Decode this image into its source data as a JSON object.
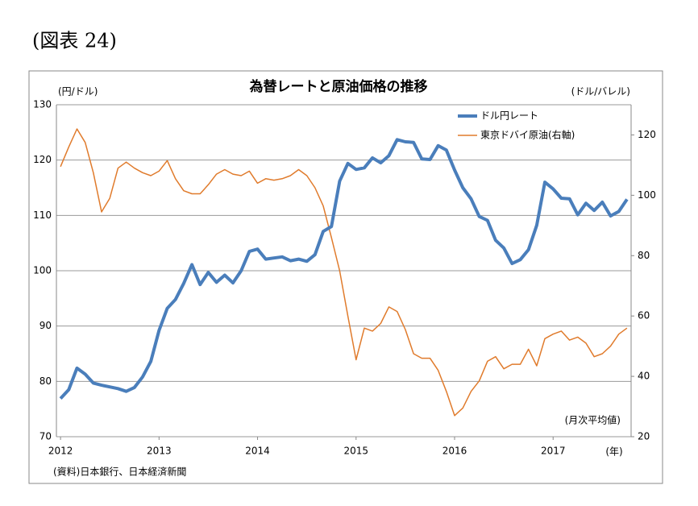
{
  "caption": "(図表 24)",
  "chart_data": {
    "type": "line",
    "title": "為替レートと原油価格の推移",
    "y_label": "(円/ドル)",
    "y2_label": "(ドル/バレル)",
    "annotations": [
      "(月次平均値)",
      "(年)"
    ],
    "source": "(資料)日本銀行、日本経済新聞",
    "categories": [
      "2012",
      null,
      null,
      null,
      null,
      null,
      null,
      null,
      null,
      null,
      null,
      null,
      "2013",
      null,
      null,
      null,
      null,
      null,
      null,
      null,
      null,
      null,
      null,
      null,
      "2014",
      null,
      null,
      null,
      null,
      null,
      null,
      null,
      null,
      null,
      null,
      null,
      "2015",
      null,
      null,
      null,
      null,
      null,
      null,
      null,
      null,
      null,
      null,
      null,
      "2016",
      null,
      null,
      null,
      null,
      null,
      null,
      null,
      null,
      null,
      null,
      null,
      "2017",
      null,
      null,
      null,
      null,
      null,
      null,
      null,
      null,
      null
    ],
    "ylim": [
      70,
      130
    ],
    "yticks": [
      70,
      80,
      90,
      100,
      110,
      120,
      130
    ],
    "y2lim": [
      20,
      130
    ],
    "y2ticks": [
      20,
      40,
      60,
      80,
      100,
      120
    ],
    "grid": true,
    "legend": "upper right",
    "series": [
      {
        "name": "ドル円レート",
        "color": "#4a7ebb",
        "width": 4,
        "values": [
          76.9,
          78.5,
          82.4,
          81.3,
          79.7,
          79.3,
          79.0,
          78.7,
          78.2,
          78.9,
          80.8,
          83.6,
          89.2,
          93.2,
          94.8,
          97.7,
          101.1,
          97.5,
          99.7,
          97.9,
          99.2,
          97.8,
          100.0,
          103.5,
          103.9,
          102.1,
          102.3,
          102.5,
          101.8,
          102.1,
          101.7,
          102.9,
          107.1,
          108.0,
          116.2,
          119.4,
          118.3,
          118.6,
          120.4,
          119.5,
          120.8,
          123.7,
          123.3,
          123.2,
          120.2,
          120.1,
          122.6,
          121.8,
          118.2,
          115.0,
          113.0,
          109.8,
          109.1,
          105.5,
          104.1,
          101.3,
          102.0,
          103.8,
          108.2,
          116.0,
          114.8,
          113.1,
          113.0,
          110.1,
          112.2,
          110.9,
          112.4,
          109.9,
          110.7,
          112.9
        ]
      },
      {
        "name": "東京ドバイ原油(右軸)",
        "color": "#e07b2c",
        "width": 1.5,
        "axis": "y2",
        "values": [
          109.5,
          116,
          122,
          117.5,
          107.5,
          94.5,
          99,
          109,
          111,
          109,
          107.5,
          106.5,
          108,
          111.5,
          105.5,
          101.5,
          100.5,
          100.5,
          103.5,
          107,
          108.5,
          107,
          106.5,
          108,
          104,
          105.5,
          105,
          105.5,
          106.5,
          108.5,
          106.5,
          102.5,
          96.5,
          86,
          75,
          60,
          45.5,
          56,
          55,
          57.5,
          63,
          61.5,
          55.5,
          47.5,
          46,
          46,
          42,
          35,
          27,
          29.5,
          35,
          38.5,
          45,
          46.5,
          42.5,
          44,
          44,
          49,
          43.5,
          52.5,
          54,
          55,
          52,
          53,
          51,
          46.5,
          47.5,
          50,
          54,
          56
        ]
      }
    ]
  }
}
